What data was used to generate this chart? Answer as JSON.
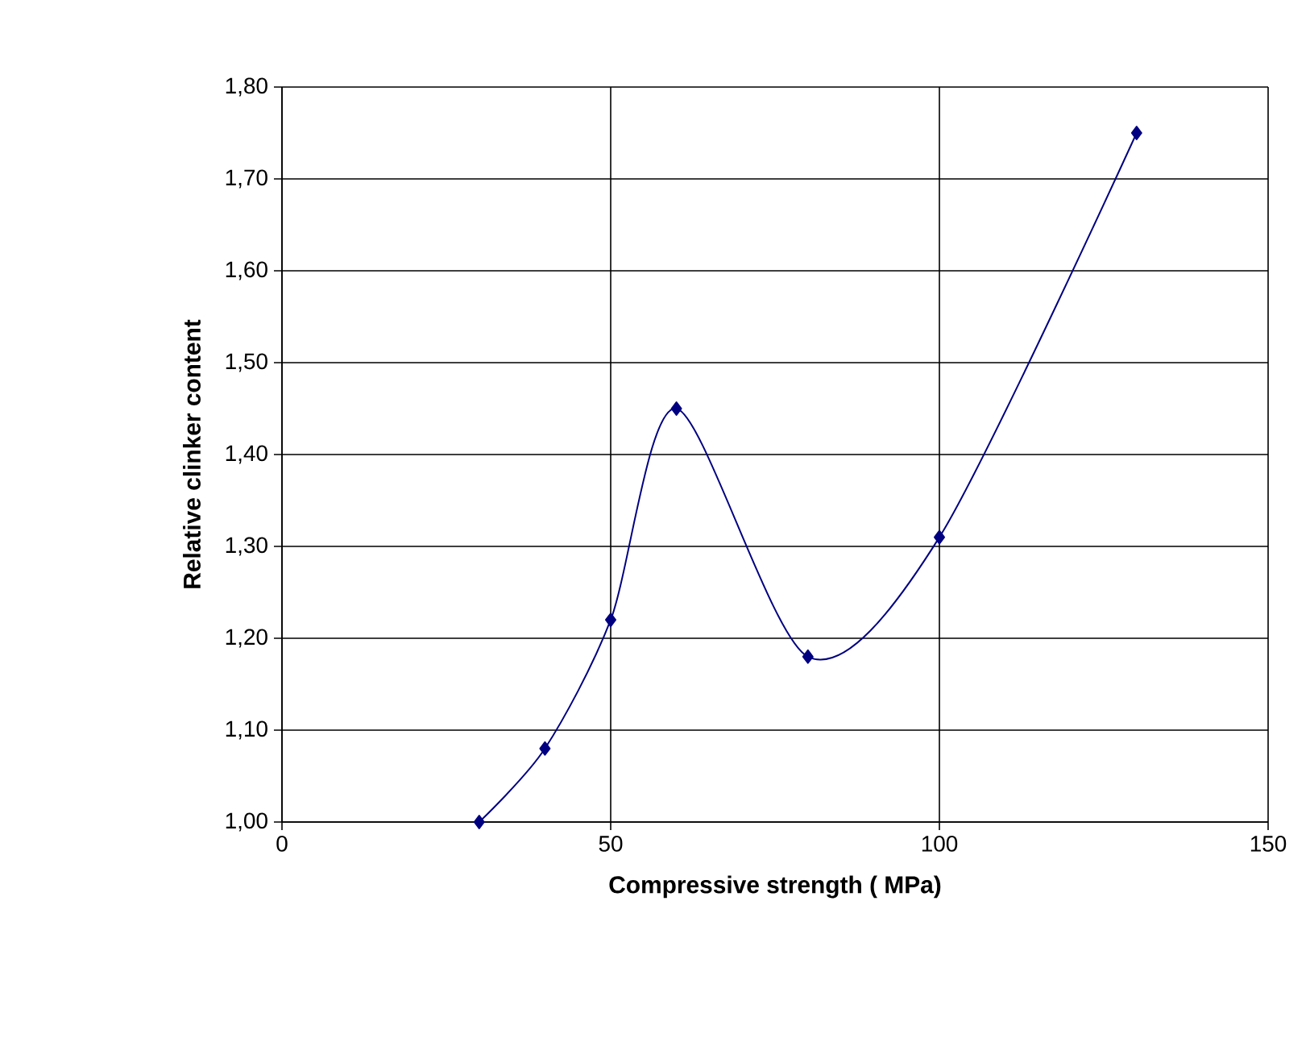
{
  "chart_data": {
    "type": "line",
    "xlabel": "Compressive strength ( MPa)",
    "ylabel": "Relative clinker content",
    "x": [
      30,
      40,
      50,
      60,
      80,
      100,
      130
    ],
    "series": [
      {
        "color": "#000080",
        "values": [
          1.0,
          1.08,
          1.22,
          1.45,
          1.18,
          1.31,
          1.75
        ]
      }
    ],
    "xlim": [
      0,
      150
    ],
    "xticks": [
      0,
      50,
      100,
      150
    ],
    "ylim": [
      1.0,
      1.8
    ],
    "yticks": [
      {
        "value": 1.0,
        "label": "1,00"
      },
      {
        "value": 1.1,
        "label": "1,10"
      },
      {
        "value": 1.2,
        "label": "1,20"
      },
      {
        "value": 1.3,
        "label": "1,30"
      },
      {
        "value": 1.4,
        "label": "1,40"
      },
      {
        "value": 1.5,
        "label": "1,50"
      },
      {
        "value": 1.6,
        "label": "1,60"
      },
      {
        "value": 1.7,
        "label": "1,70"
      },
      {
        "value": 1.8,
        "label": "1,80"
      }
    ],
    "grid": true,
    "marker": "diamond",
    "line_style": "solid"
  }
}
